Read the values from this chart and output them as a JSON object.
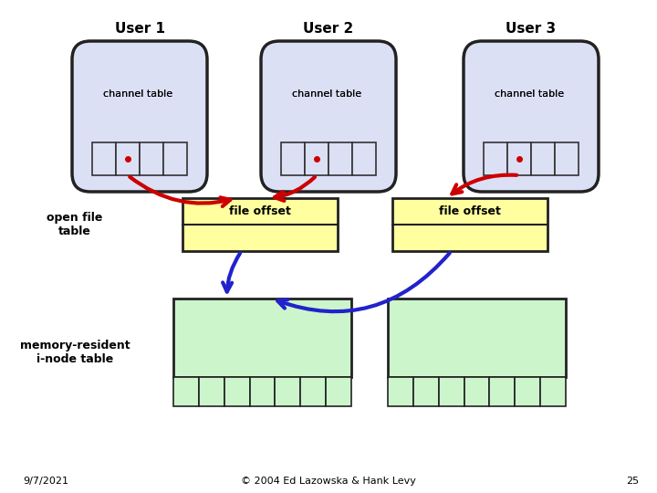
{
  "bg_color": "#ffffff",
  "user_labels": [
    "User 1",
    "User 2",
    "User 3"
  ],
  "user_box_color": "#dce0f5",
  "user_box_edge": "#222222",
  "file_offset_color": "#ffffa0",
  "file_offset_edge": "#222222",
  "inode_color": "#ccf5cc",
  "inode_edge": "#222222",
  "open_file_label": "open file\ntable",
  "memory_label": "memory-resident\ni-node table",
  "footer_date": "9/7/2021",
  "footer_copy": "© 2004 Ed Lazowska & Hank Levy",
  "footer_page": "25",
  "red_arrow_color": "#cc0000",
  "blue_arrow_color": "#2222cc"
}
